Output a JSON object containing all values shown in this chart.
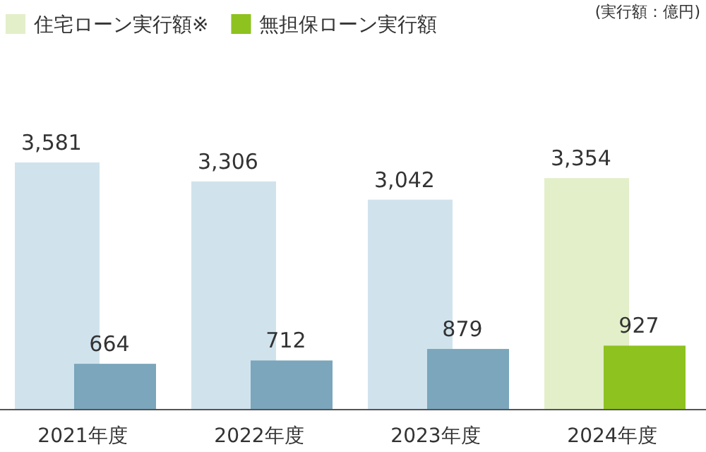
{
  "chart_data": {
    "type": "bar",
    "categories": [
      "2021年度",
      "2022年度",
      "2023年度",
      "2024年度"
    ],
    "series": [
      {
        "name": "住宅ローン実行額※",
        "color": "#e3efc9",
        "colors": [
          "#d0e3ed",
          "#d0e3ed",
          "#d0e3ed",
          "#e3efc9"
        ],
        "values": [
          3581,
          3306,
          3042,
          3354
        ],
        "value_labels": [
          "3,581",
          "3,306",
          "3,042",
          "3,354"
        ]
      },
      {
        "name": "無担保ローン実行額",
        "color": "#8dc21f",
        "colors": [
          "#7ba6bc",
          "#7ba6bc",
          "#7ba6bc",
          "#8dc21f"
        ],
        "values": [
          664,
          712,
          879,
          927
        ],
        "value_labels": [
          "664",
          "712",
          "879",
          "927"
        ]
      }
    ],
    "legend": "top left",
    "annotations": [
      "(実行額：億円)"
    ]
  }
}
